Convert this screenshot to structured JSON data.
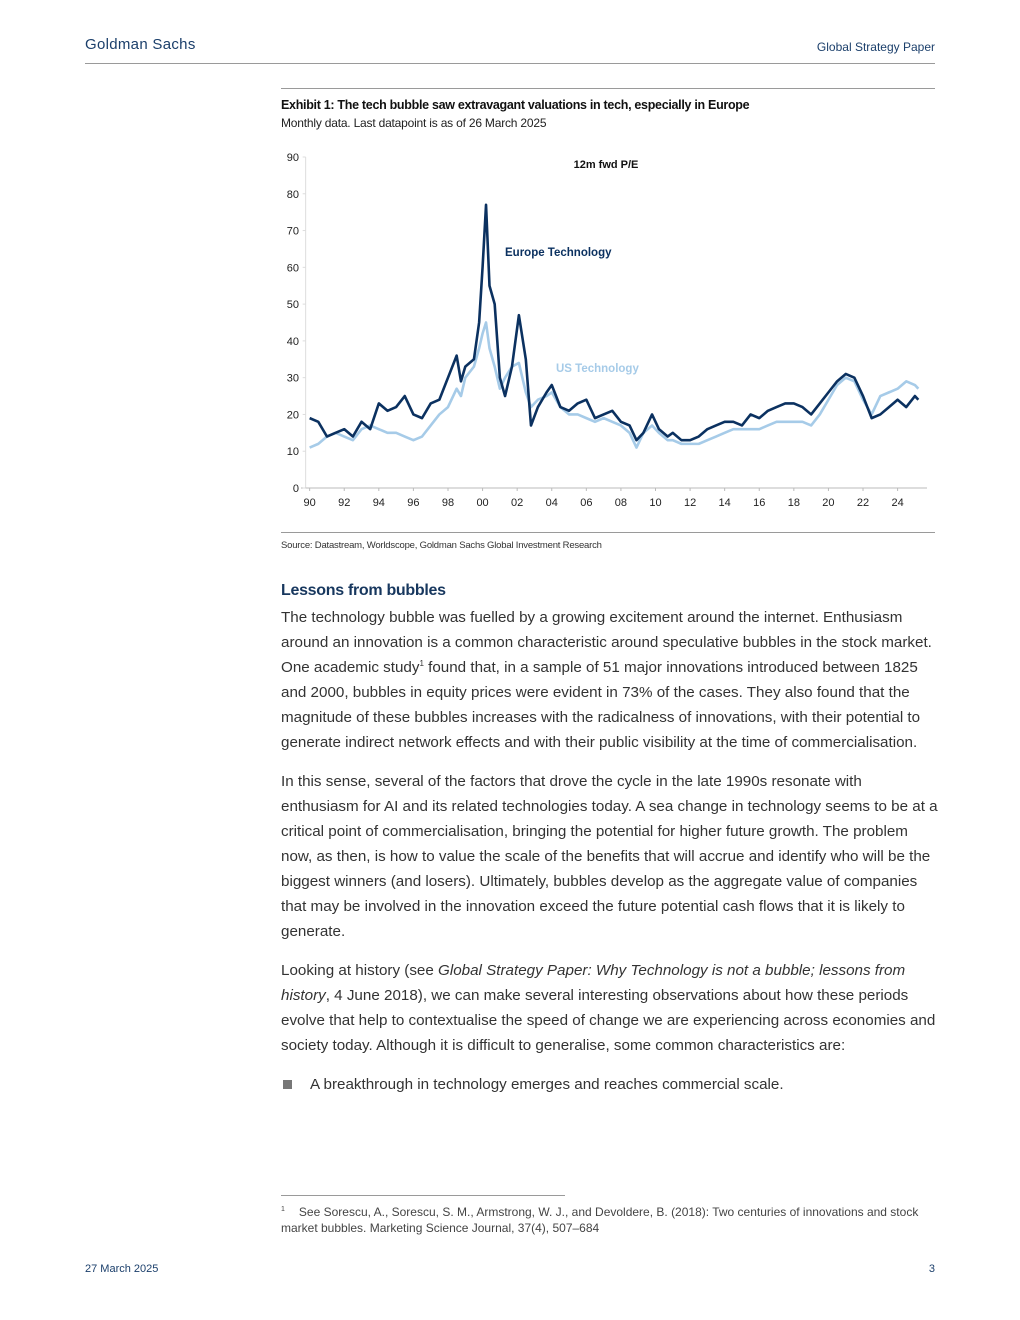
{
  "header": {
    "brand": "Goldman Sachs",
    "report": "Global Strategy Paper"
  },
  "chart_data": {
    "type": "line",
    "title": "Exhibit 1: The tech bubble saw extravagant valuations in tech, especially in Europe",
    "subtitle": "Monthly data. Last datapoint is as of 26 March 2025",
    "axis_title": "12m fwd P/E",
    "source": "Source: Datastream, Worldscope, Goldman Sachs Global Investment Research",
    "x": [
      1990,
      1990.5,
      1991,
      1991.5,
      1992,
      1992.5,
      1993,
      1993.5,
      1994,
      1994.5,
      1995,
      1995.5,
      1996,
      1996.5,
      1997,
      1997.5,
      1998,
      1998.5,
      1998.75,
      1999,
      1999.5,
      1999.8,
      2000,
      2000.2,
      2000.4,
      2000.7,
      2001,
      2001.3,
      2001.7,
      2002.1,
      2002.5,
      2002.8,
      2003.2,
      2003.7,
      2004,
      2004.5,
      2005,
      2005.5,
      2006,
      2006.5,
      2007,
      2007.5,
      2008,
      2008.5,
      2008.9,
      2009.3,
      2009.8,
      2010.2,
      2010.7,
      2011,
      2011.5,
      2012,
      2012.5,
      2013,
      2013.5,
      2014,
      2014.5,
      2015,
      2015.5,
      2016,
      2016.5,
      2017,
      2017.5,
      2018,
      2018.5,
      2019,
      2019.5,
      2020,
      2020.5,
      2021,
      2021.5,
      2022,
      2022.5,
      2023,
      2023.5,
      2024,
      2024.5,
      2025,
      2025.2
    ],
    "series": [
      {
        "name": "Europe Technology",
        "color": "#0b3160",
        "values": [
          19,
          18,
          14,
          15,
          16,
          14,
          18,
          16,
          23,
          21,
          22,
          25,
          20,
          19,
          23,
          24,
          30,
          36,
          29,
          33,
          35,
          45,
          60,
          77,
          55,
          50,
          30,
          25,
          33,
          47,
          35,
          17,
          22,
          26,
          28,
          22,
          21,
          23,
          24,
          19,
          20,
          21,
          18,
          17,
          13,
          15,
          20,
          16,
          14,
          15,
          13,
          13,
          14,
          16,
          17,
          18,
          18,
          17,
          20,
          19,
          21,
          22,
          23,
          23,
          22,
          20,
          23,
          26,
          29,
          31,
          30,
          25,
          19,
          20,
          22,
          24,
          22,
          25,
          24
        ]
      },
      {
        "name": "US Technology",
        "color": "#a6cbe8",
        "values": [
          11,
          12,
          14,
          15,
          14,
          13,
          16,
          17,
          16,
          15,
          15,
          14,
          13,
          14,
          17,
          20,
          22,
          27,
          25,
          30,
          33,
          38,
          42,
          45,
          38,
          33,
          27,
          30,
          33,
          34,
          26,
          22,
          24,
          25,
          26,
          22,
          20,
          20,
          19,
          18,
          19,
          18,
          17,
          15,
          11,
          15,
          17,
          15,
          13,
          13,
          12,
          12,
          12,
          13,
          14,
          15,
          16,
          16,
          16,
          16,
          17,
          18,
          18,
          18,
          18,
          17,
          20,
          24,
          28,
          30,
          29,
          24,
          20,
          25,
          26,
          27,
          29,
          28,
          27
        ]
      }
    ],
    "xlim": [
      1989.5,
      2025.7
    ],
    "xticks": [
      {
        "value": 1990,
        "label": "90"
      },
      {
        "value": 1992,
        "label": "92"
      },
      {
        "value": 1994,
        "label": "94"
      },
      {
        "value": 1996,
        "label": "96"
      },
      {
        "value": 1998,
        "label": "98"
      },
      {
        "value": 2000,
        "label": "00"
      },
      {
        "value": 2002,
        "label": "02"
      },
      {
        "value": 2004,
        "label": "04"
      },
      {
        "value": 2006,
        "label": "06"
      },
      {
        "value": 2008,
        "label": "08"
      },
      {
        "value": 2010,
        "label": "10"
      },
      {
        "value": 2012,
        "label": "12"
      },
      {
        "value": 2014,
        "label": "14"
      },
      {
        "value": 2016,
        "label": "16"
      },
      {
        "value": 2018,
        "label": "18"
      },
      {
        "value": 2020,
        "label": "20"
      },
      {
        "value": 2022,
        "label": "22"
      },
      {
        "value": 2024,
        "label": "24"
      }
    ],
    "ylim": [
      0,
      90
    ],
    "yticks": [
      0,
      10,
      20,
      30,
      40,
      50,
      60,
      70,
      80,
      90
    ],
    "grid": false
  },
  "section": {
    "heading": "Lessons from bubbles",
    "paragraphs": [
      {
        "before": "The technology bubble was fuelled by a growing excitement around the internet. Enthusiasm around an innovation is a common characteristic around speculative bubbles in the stock market. One academic study",
        "footnote_ref": "1",
        "after": " found that, in a sample of 51 major innovations introduced between 1825 and 2000, bubbles in equity prices were evident in 73% of the cases. They also found that the magnitude of these bubbles increases with the radicalness of innovations, with their potential to generate indirect network effects and with their public visibility at the time of commercialisation."
      },
      {
        "text": "In this sense, several of the factors that drove the cycle in the late 1990s resonate with enthusiasm for AI and its related technologies today. A sea change in technology seems to be at a critical point of commercialisation, bringing the potential for higher future growth. The problem now, as then, is how to value the scale of the benefits that will accrue and identify who will be the biggest winners (and losers). Ultimately, bubbles develop as the aggregate value of companies that may be involved in the innovation exceed the future potential cash flows that it is likely to generate."
      },
      {
        "before": "Looking at history (see ",
        "citation": "Global Strategy Paper: Why Technology is not a bubble; lessons from history",
        "after": ", 4 June 2018), we can make several interesting observations about how these periods evolve that help to contextualise the speed of change we are experiencing across economies and society today. Although it is difficult to generalise, some common characteristics are:"
      }
    ],
    "bullets": [
      "A breakthrough in technology emerges and reaches commercial scale."
    ]
  },
  "footnote": {
    "number": "1",
    "text": "See Sorescu, A., Sorescu, S. M., Armstrong, W. J., and Devoldere, B. (2018): Two centuries of innovations and stock market bubbles. Marketing Science Journal, 37(4), 507–684"
  },
  "footer": {
    "date": "27 March 2025",
    "page": "3"
  }
}
